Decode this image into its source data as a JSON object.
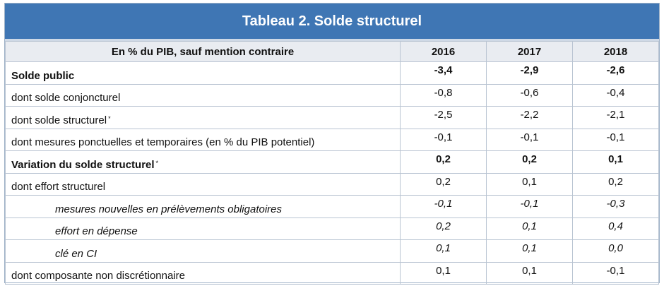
{
  "title": "Tableau 2. Solde structurel",
  "header": {
    "label": "En % du PIB, sauf mention contraire",
    "years": [
      "2016",
      "2017",
      "2018"
    ]
  },
  "rows": [
    {
      "label": "Solde public",
      "note": "",
      "values": [
        "-3,4",
        "-2,9",
        "-2,6"
      ],
      "style": "bold"
    },
    {
      "label": "dont solde conjoncturel",
      "note": "",
      "values": [
        "-0,8",
        "-0,6",
        "-0,4"
      ],
      "style": "normal"
    },
    {
      "label": "dont solde structurel",
      "note": "*",
      "values": [
        "-2,5",
        "-2,2",
        "-2,1"
      ],
      "style": "normal"
    },
    {
      "label": "dont mesures ponctuelles et temporaires (en % du PIB potentiel)",
      "note": "",
      "values": [
        "-0,1",
        "-0,1",
        "-0,1"
      ],
      "style": "normal"
    },
    {
      "label": "Variation du solde structurel",
      "note": "*",
      "values": [
        "0,2",
        "0,2",
        "0,1"
      ],
      "style": "bold"
    },
    {
      "label": "dont effort structurel",
      "note": "",
      "values": [
        "0,2",
        "0,1",
        "0,2"
      ],
      "style": "normal"
    },
    {
      "label": "mesures nouvelles en prélèvements obligatoires",
      "note": "",
      "values": [
        "-0,1",
        "-0,1",
        "-0,3"
      ],
      "style": "italic"
    },
    {
      "label": "effort en dépense",
      "note": "",
      "values": [
        "0,2",
        "0,1",
        "0,4"
      ],
      "style": "italic"
    },
    {
      "label": "clé en CI",
      "note": "",
      "values": [
        "0,1",
        "0,1",
        "0,0"
      ],
      "style": "italic"
    },
    {
      "label": "dont composante non discrétionnaire",
      "note": "",
      "values": [
        "0,1",
        "0,1",
        "-0,1"
      ],
      "style": "normal"
    }
  ]
}
